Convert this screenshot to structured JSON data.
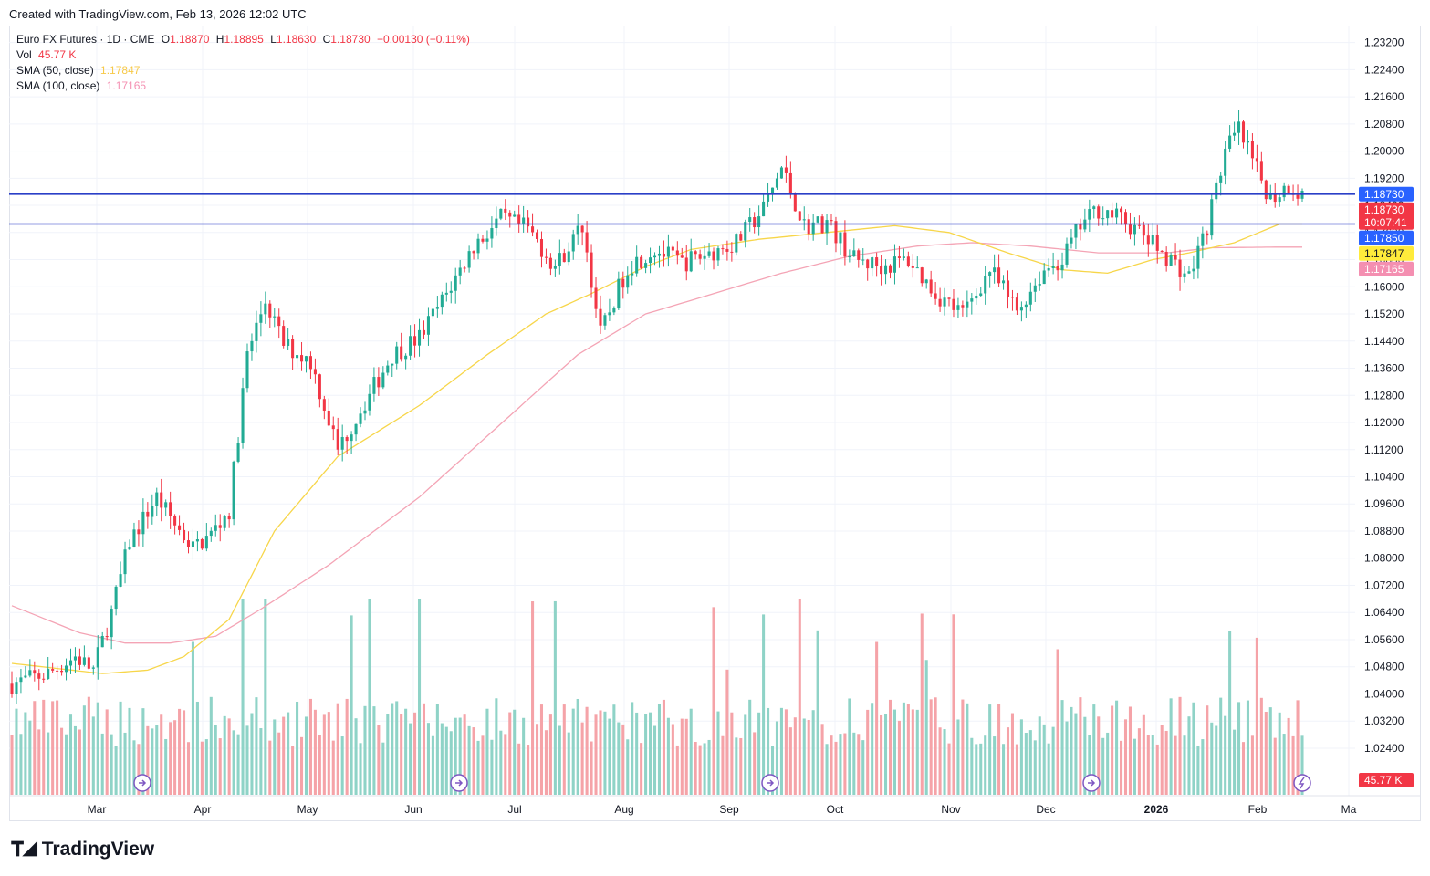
{
  "header": {
    "created_text": "Created with TradingView.com, Feb 13, 2026 12:02 UTC"
  },
  "legend": {
    "symbol": "Euro FX Futures · 1D · CME",
    "o_label": "O",
    "o_value": "1.18870",
    "h_label": "H",
    "h_value": "1.18895",
    "l_label": "L",
    "l_value": "1.18630",
    "c_label": "C",
    "c_value": "1.18730",
    "change": "−0.00130 (−0.11%)",
    "vol_label": "Vol",
    "vol_value": "45.77 K",
    "sma50_label": "SMA (50, close)",
    "sma50_value": "1.17847",
    "sma100_label": "SMA (100, close)",
    "sma100_value": "1.17165"
  },
  "colors": {
    "up": "#22ab94",
    "down": "#f23645",
    "vol_up": "#8fd3c7",
    "vol_down": "#f5a3a8",
    "sma50": "#f7d64a",
    "sma100": "#f4a4b5",
    "hline": "#2a3fc7",
    "grid": "#f0f3fa"
  },
  "footer": {
    "brand": "TradingView",
    "logo_icon": "tradingview-logo-icon"
  },
  "chart_data": {
    "type": "candlestick",
    "ylim": [
      1.01,
      1.237
    ],
    "y_ticks": [
      "1.23200",
      "1.22400",
      "1.21600",
      "1.20800",
      "1.20000",
      "1.19200",
      "1.18400",
      "1.17600",
      "1.16800",
      "1.16000",
      "1.15200",
      "1.14400",
      "1.13600",
      "1.12800",
      "1.12000",
      "1.11200",
      "1.10400",
      "1.09600",
      "1.08800",
      "1.08000",
      "1.07200",
      "1.06400",
      "1.05600",
      "1.04800",
      "1.04000",
      "1.03200",
      "1.02400"
    ],
    "x_ticks": [
      "Mar",
      "Apr",
      "May",
      "Jun",
      "Jul",
      "Aug",
      "Sep",
      "Oct",
      "Nov",
      "Dec",
      "2026",
      "Feb",
      "Ma"
    ],
    "horizontal_lines": [
      1.1873,
      1.1785
    ],
    "price_tags": [
      {
        "text": "1.18730",
        "value": 1.1873,
        "color": "#2962ff"
      },
      {
        "text": "1.18730",
        "sub": "10:07:41",
        "value": 1.1873,
        "color": "#f23645"
      },
      {
        "text": "1.17850",
        "value": 1.1785,
        "color": "#2962ff"
      },
      {
        "text": "1.17847",
        "value": 1.17847,
        "color": "#ffeb3b"
      },
      {
        "text": "1.17165",
        "value": 1.17165,
        "color": "#f48fb1"
      }
    ],
    "volume_tag": "45.77 K",
    "sma50_anchors": [
      [
        0,
        1.049
      ],
      [
        20,
        1.046
      ],
      [
        30,
        1.047
      ],
      [
        38,
        1.051
      ],
      [
        48,
        1.062
      ],
      [
        58,
        1.088
      ],
      [
        72,
        1.11
      ],
      [
        90,
        1.125
      ],
      [
        105,
        1.14
      ],
      [
        118,
        1.152
      ],
      [
        128,
        1.158
      ],
      [
        140,
        1.166
      ],
      [
        150,
        1.171
      ],
      [
        165,
        1.174
      ],
      [
        180,
        1.176
      ],
      [
        195,
        1.178
      ],
      [
        207,
        1.176
      ],
      [
        220,
        1.17
      ],
      [
        232,
        1.165
      ],
      [
        242,
        1.164
      ],
      [
        252,
        1.168
      ],
      [
        260,
        1.17
      ],
      [
        270,
        1.173
      ],
      [
        280,
        1.1785
      ]
    ],
    "sma100_anchors": [
      [
        0,
        1.066
      ],
      [
        15,
        1.058
      ],
      [
        25,
        1.055
      ],
      [
        35,
        1.055
      ],
      [
        45,
        1.057
      ],
      [
        55,
        1.065
      ],
      [
        70,
        1.078
      ],
      [
        90,
        1.098
      ],
      [
        110,
        1.122
      ],
      [
        125,
        1.14
      ],
      [
        140,
        1.152
      ],
      [
        155,
        1.158
      ],
      [
        170,
        1.164
      ],
      [
        185,
        1.169
      ],
      [
        200,
        1.172
      ],
      [
        212,
        1.173
      ],
      [
        225,
        1.172
      ],
      [
        240,
        1.17
      ],
      [
        255,
        1.17
      ],
      [
        265,
        1.1715
      ],
      [
        280,
        1.1717
      ]
    ],
    "price_anchors": [
      [
        0,
        1.043
      ],
      [
        8,
        1.046
      ],
      [
        14,
        1.051
      ],
      [
        18,
        1.047
      ],
      [
        22,
        1.064
      ],
      [
        26,
        1.085
      ],
      [
        32,
        1.098
      ],
      [
        36,
        1.09
      ],
      [
        40,
        1.083
      ],
      [
        44,
        1.087
      ],
      [
        48,
        1.094
      ],
      [
        52,
        1.14
      ],
      [
        56,
        1.156
      ],
      [
        60,
        1.143
      ],
      [
        66,
        1.138
      ],
      [
        72,
        1.112
      ],
      [
        78,
        1.126
      ],
      [
        84,
        1.14
      ],
      [
        90,
        1.145
      ],
      [
        96,
        1.158
      ],
      [
        102,
        1.172
      ],
      [
        108,
        1.18
      ],
      [
        114,
        1.177
      ],
      [
        120,
        1.166
      ],
      [
        126,
        1.178
      ],
      [
        130,
        1.146
      ],
      [
        136,
        1.166
      ],
      [
        142,
        1.171
      ],
      [
        148,
        1.167
      ],
      [
        154,
        1.17
      ],
      [
        160,
        1.173
      ],
      [
        166,
        1.183
      ],
      [
        170,
        1.195
      ],
      [
        175,
        1.178
      ],
      [
        180,
        1.179
      ],
      [
        186,
        1.168
      ],
      [
        192,
        1.166
      ],
      [
        198,
        1.168
      ],
      [
        204,
        1.158
      ],
      [
        210,
        1.152
      ],
      [
        216,
        1.165
      ],
      [
        222,
        1.153
      ],
      [
        228,
        1.165
      ],
      [
        232,
        1.168
      ],
      [
        236,
        1.178
      ],
      [
        240,
        1.183
      ],
      [
        245,
        1.18
      ],
      [
        250,
        1.175
      ],
      [
        256,
        1.168
      ],
      [
        260,
        1.163
      ],
      [
        264,
        1.178
      ],
      [
        268,
        1.2
      ],
      [
        271,
        1.206
      ],
      [
        274,
        1.197
      ],
      [
        278,
        1.186
      ],
      [
        282,
        1.19
      ],
      [
        285,
        1.187
      ]
    ],
    "volume_max": 220000
  }
}
